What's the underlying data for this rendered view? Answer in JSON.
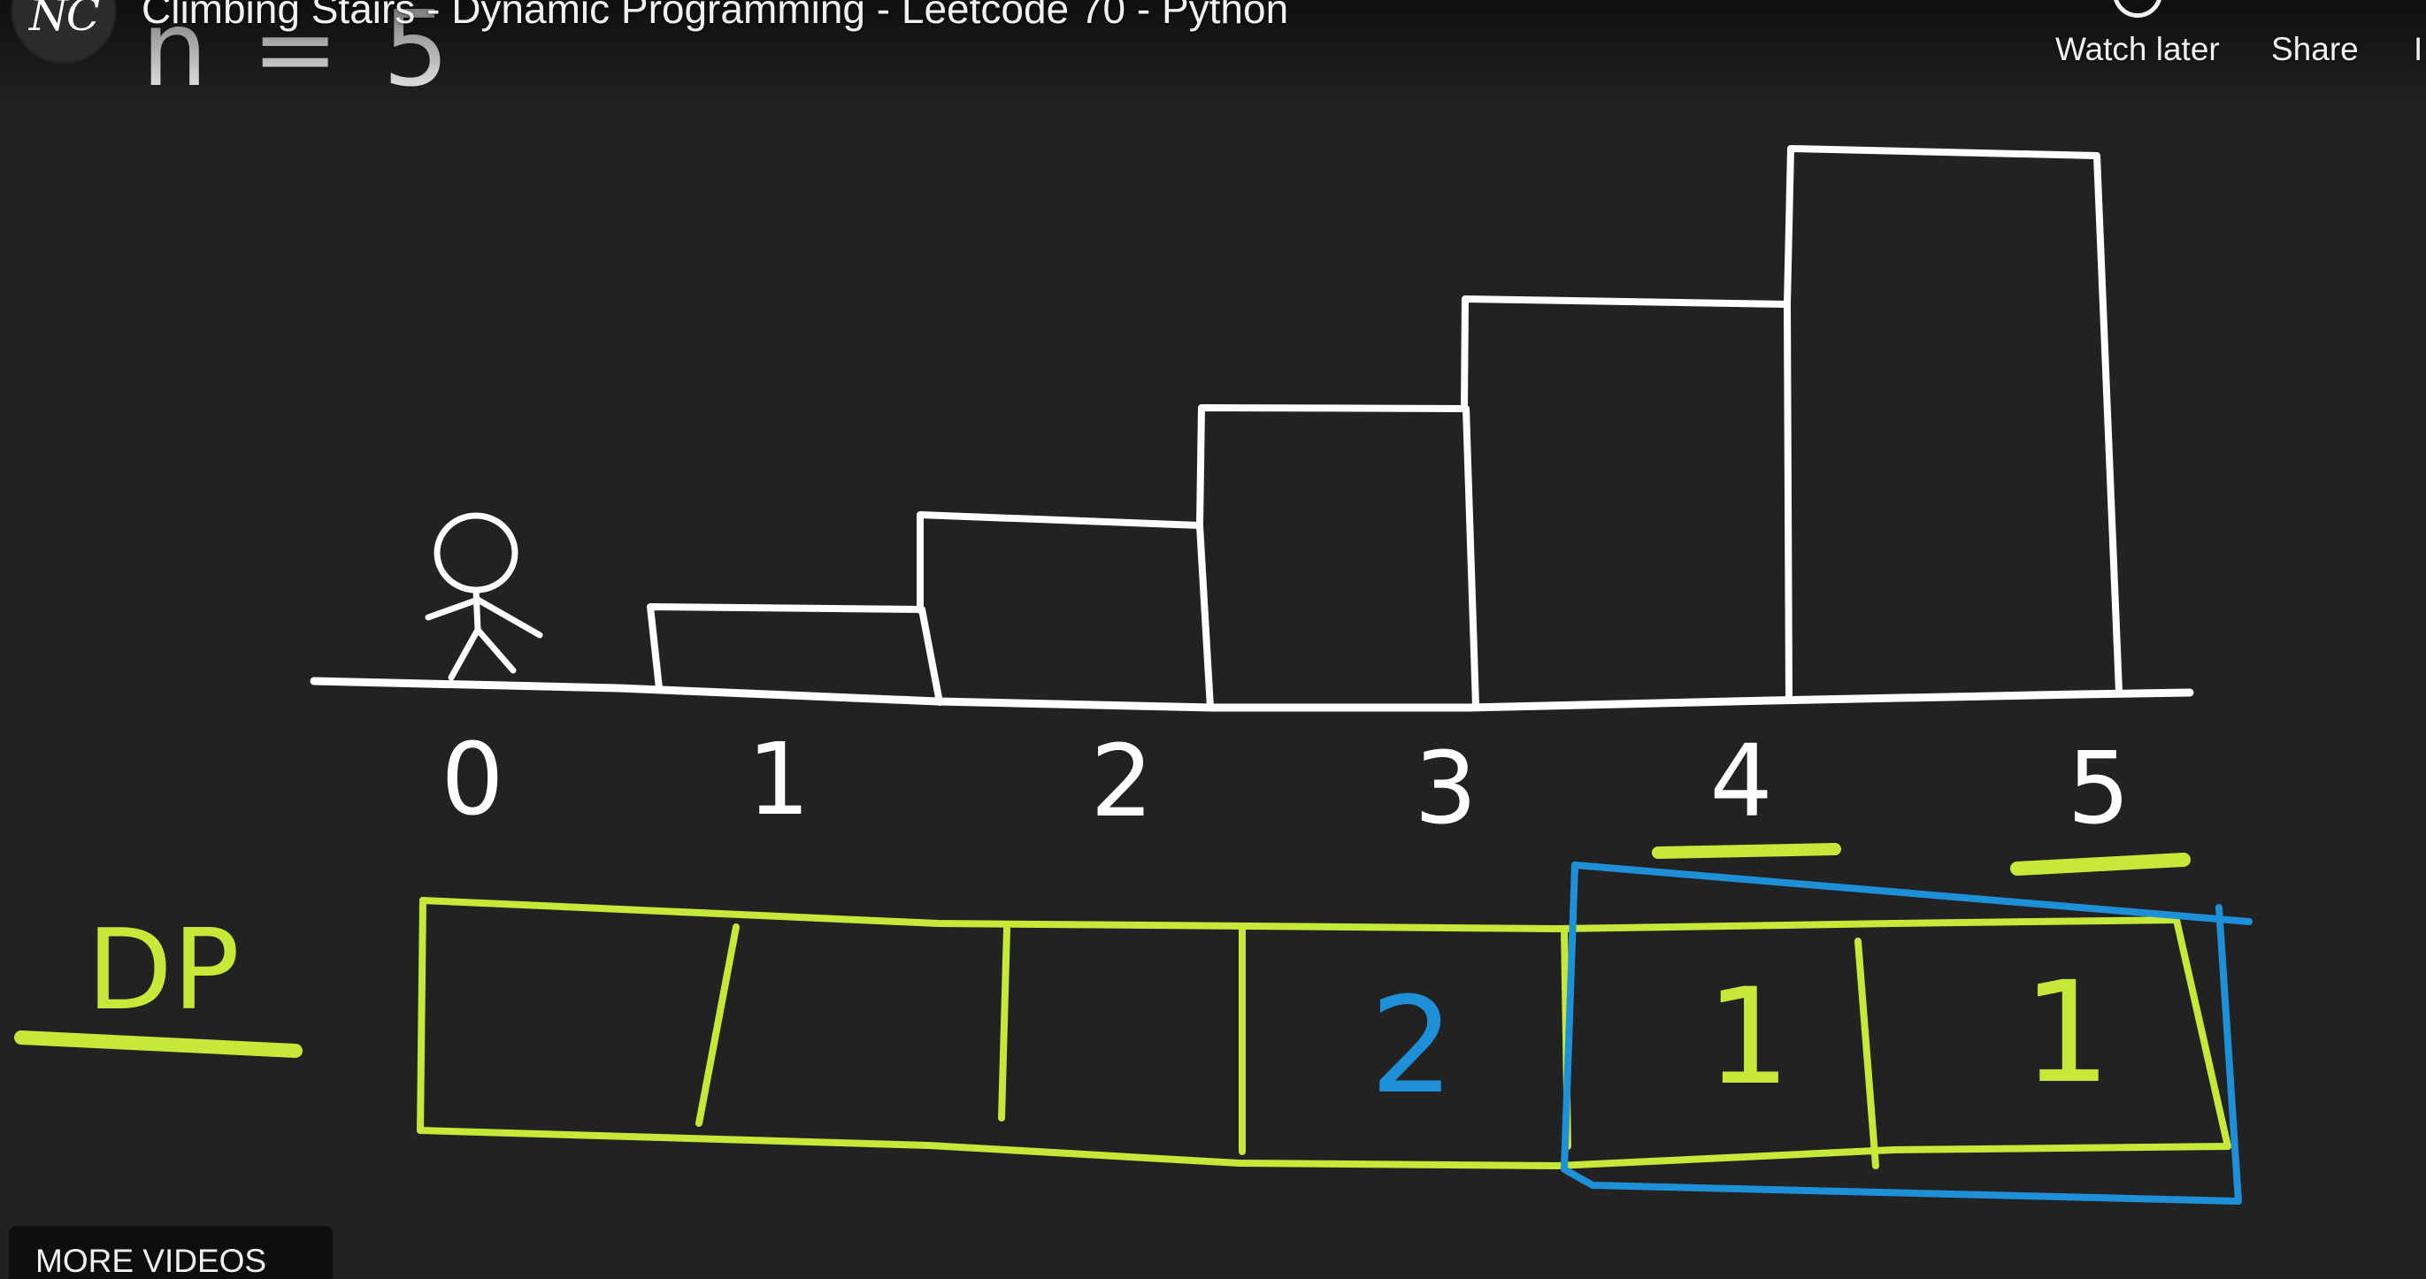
{
  "video": {
    "title": "Climbing Stairs - Dynamic Programming - Leetcode 70 - Python",
    "channel_logo": "NC"
  },
  "player_actions": {
    "watch_later": "Watch later",
    "share": "Share",
    "more": "I"
  },
  "more_videos": "MORE VIDEOS",
  "whiteboard": {
    "n_label": "n = 5",
    "stair_labels": [
      "0",
      "1",
      "2",
      "3",
      "4",
      "5"
    ],
    "dp_label": "DP",
    "dp_values": [
      "",
      "",
      "",
      "2",
      "1",
      "1"
    ]
  },
  "colors": {
    "background": "#222222",
    "chalk_white": "#ffffff",
    "chalk_green": "#c6e838",
    "chalk_blue": "#1e90d8"
  },
  "icons": {
    "stick_figure": "person-icon"
  }
}
